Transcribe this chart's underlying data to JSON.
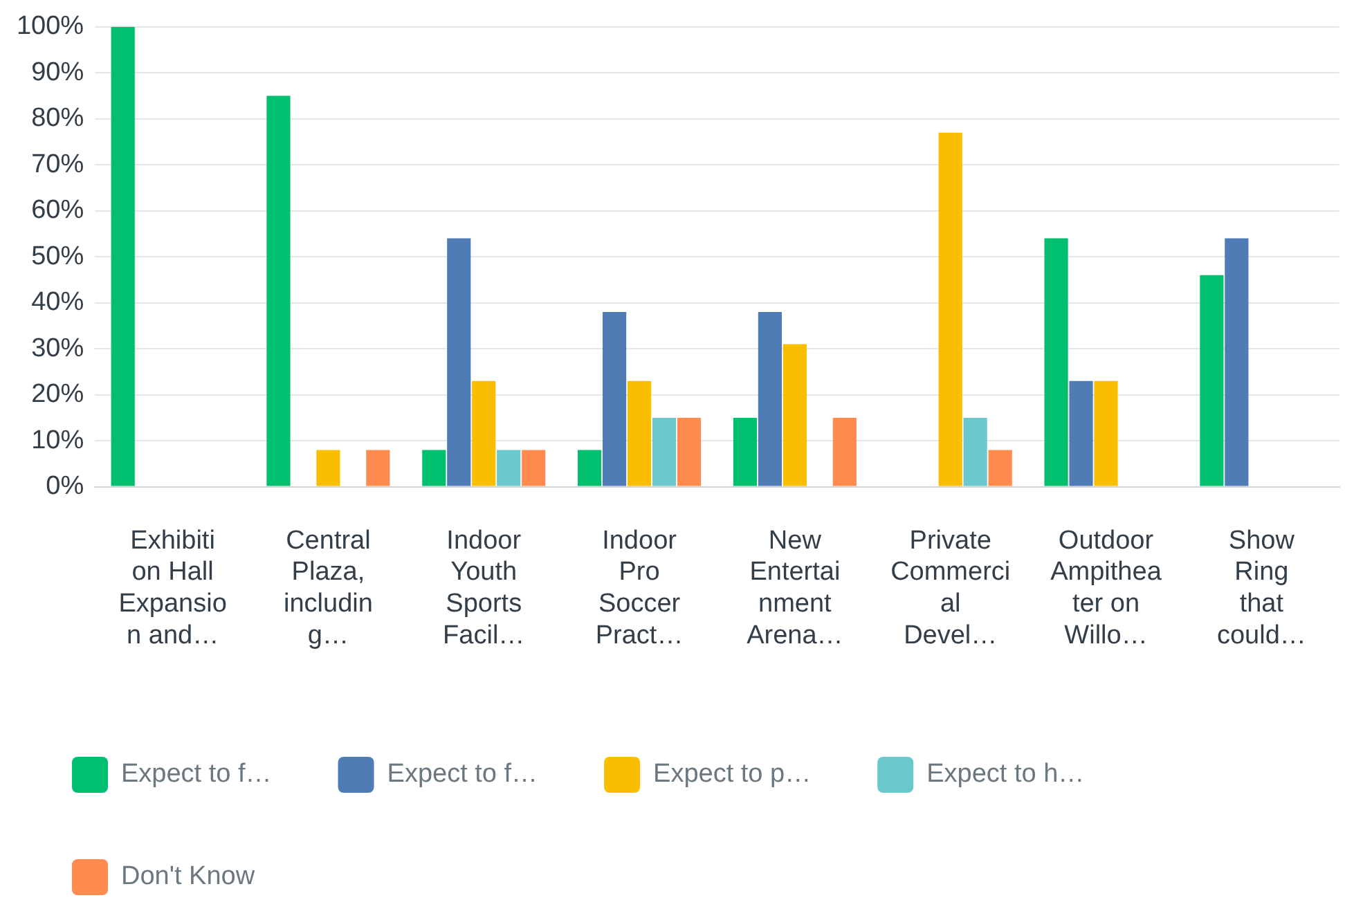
{
  "chart_data": {
    "type": "bar",
    "categories": [
      "Exhibition Hall Expansion and…",
      "Central Plaza, including…",
      "Indoor Youth Sports Facil…",
      "Indoor Pro Soccer Pract…",
      "New Entertainment Arena…",
      "Private Commercial Devel…",
      "Outdoor Ampitheater on Willo…",
      "Show Ring that could…"
    ],
    "series": [
      {
        "name": "Expect to f…",
        "color": "#00bf6f",
        "values": [
          100,
          85,
          8,
          8,
          15,
          0,
          54,
          46
        ]
      },
      {
        "name": "Expect to f…",
        "color": "#507cb6",
        "values": [
          0,
          0,
          54,
          38,
          38,
          0,
          23,
          54
        ]
      },
      {
        "name": "Expect to p…",
        "color": "#f9be00",
        "values": [
          0,
          8,
          23,
          23,
          31,
          77,
          23,
          0
        ]
      },
      {
        "name": "Expect to h…",
        "color": "#6bc8cd",
        "values": [
          0,
          0,
          8,
          15,
          0,
          15,
          0,
          0
        ]
      },
      {
        "name": "Don't Know",
        "color": "#ff8b4f",
        "values": [
          0,
          8,
          8,
          15,
          15,
          8,
          0,
          0
        ]
      }
    ],
    "ylim": [
      0,
      100
    ],
    "yticks": [
      {
        "value": 0,
        "label": "0%"
      },
      {
        "value": 10,
        "label": "10%"
      },
      {
        "value": 20,
        "label": "20%"
      },
      {
        "value": 30,
        "label": "30%"
      },
      {
        "value": 40,
        "label": "40%"
      },
      {
        "value": 50,
        "label": "50%"
      },
      {
        "value": 60,
        "label": "60%"
      },
      {
        "value": 70,
        "label": "70%"
      },
      {
        "value": 80,
        "label": "80%"
      },
      {
        "value": 90,
        "label": "90%"
      },
      {
        "value": 100,
        "label": "100%"
      }
    ],
    "grid": "y",
    "legend": "bottom"
  }
}
